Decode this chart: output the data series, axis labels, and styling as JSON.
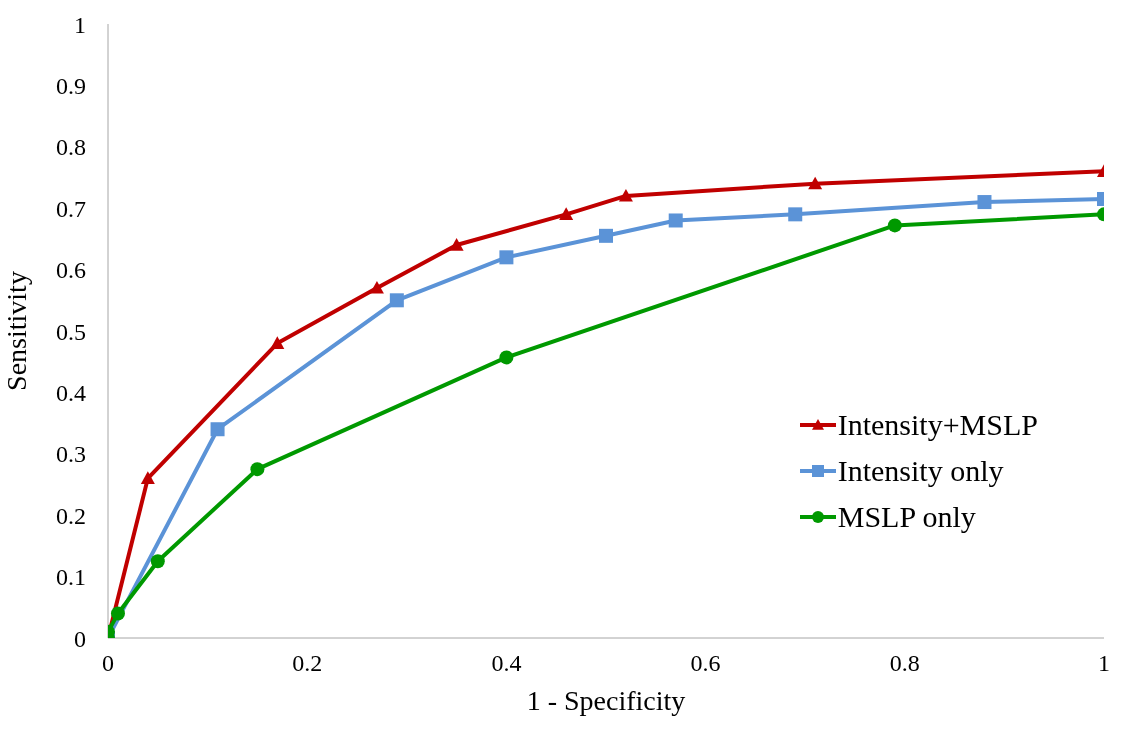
{
  "chart_data": {
    "type": "line",
    "xlabel": "1 - Specificity",
    "ylabel": "Sensitivity",
    "xlim": [
      0,
      1
    ],
    "xticks": [
      0,
      0.2,
      0.4,
      0.6,
      0.8,
      1
    ],
    "ylim": [
      0,
      1
    ],
    "yticks": [
      0,
      0.1,
      0.2,
      0.3,
      0.4,
      0.5,
      0.6,
      0.7,
      0.8,
      0.9,
      1
    ],
    "grid": false,
    "legend": "right",
    "line_style": "solid",
    "series": [
      {
        "name": "Intensity+MSLP",
        "color": "#c00000",
        "marker": "triangle",
        "x": [
          0,
          0.04,
          0.17,
          0.27,
          0.35,
          0.46,
          0.52,
          0.71,
          1
        ],
        "values": [
          0,
          0.26,
          0.48,
          0.57,
          0.64,
          0.69,
          0.72,
          0.74,
          0.76
        ]
      },
      {
        "name": "Intensity only",
        "color": "#5b93d7",
        "marker": "square",
        "x": [
          0,
          0.11,
          0.29,
          0.4,
          0.5,
          0.57,
          0.69,
          0.88,
          1
        ],
        "values": [
          0,
          0.34,
          0.55,
          0.62,
          0.655,
          0.68,
          0.69,
          0.71,
          0.715
        ]
      },
      {
        "name": "MSLP only",
        "color": "#009900",
        "marker": "circle",
        "x": [
          0,
          0,
          0.01,
          0.05,
          0.15,
          0.4,
          0.79,
          1
        ],
        "values": [
          0,
          0.01,
          0.04,
          0.125,
          0.275,
          0.457,
          0.672,
          0.69
        ]
      }
    ]
  }
}
